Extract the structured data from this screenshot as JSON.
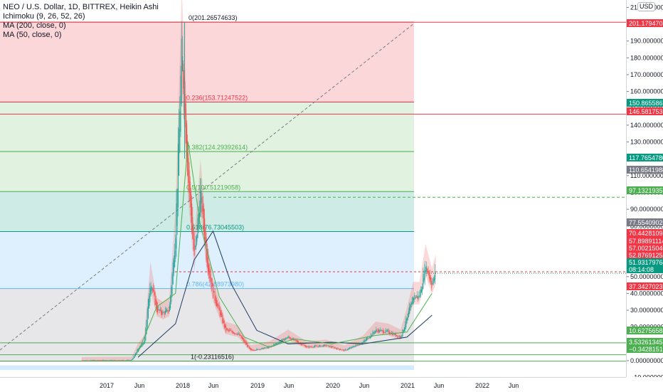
{
  "header": {
    "symbol_line": "NEO / U.S. Dollar, 1D, BITTREX, Heikin Ashi",
    "indicators": [
      "Ichimoku (9, 26, 52, 26)",
      "MA (200, close, 0)",
      "MA (50, close, 0)"
    ]
  },
  "currency_badge": "USD",
  "fib_labels": {
    "top": "0(201.26574633)",
    "l236": "0.236(153.71247522)",
    "l382": "0.382(124.29392614)",
    "l5": "0.5(100.51219058)",
    "l618": "0.618(76.73045503)",
    "l786": "0.786(42.88973980)",
    "bottom": "1(-0.23116516)"
  },
  "price_ticks": [
    "210.00000000",
    "200.00000000",
    "190.00000000",
    "180.00000000",
    "170.00000000",
    "160.00000000",
    "150.00000000",
    "140.00000000",
    "130.00000000",
    "120.00000000",
    "110.00000000",
    "100.00000000",
    "90.00000000",
    "80.00000000",
    "70.00000000",
    "60.00000000",
    "50.00000000",
    "40.00000000",
    "30.00000000",
    "20.00000000",
    "10.00000000",
    "0.00000000",
    "−10.00000000"
  ],
  "price_badges": [
    {
      "text": "201.17947087",
      "color": "#f23645"
    },
    {
      "text": "150.86558674",
      "color": "#089981"
    },
    {
      "text": "146.58175360",
      "color": "#f23645"
    },
    {
      "text": "117.76547808",
      "color": "#089981"
    },
    {
      "text": "110.65419886",
      "color": "#787b86"
    },
    {
      "text": "97.13219357",
      "color": "#4caf50"
    },
    {
      "text": "77.55409020",
      "color": "#787b86"
    },
    {
      "text": "70.44281098",
      "color": "#f23645"
    },
    {
      "text": "57.89891114",
      "color": "#f23645"
    },
    {
      "text": "57.00215040",
      "color": "#f23645"
    },
    {
      "text": "52.87691254",
      "color": "#f23645"
    },
    {
      "text": "51.93179764",
      "color": "#089981"
    },
    {
      "text": "08:14:08",
      "color": "#089981"
    },
    {
      "text": "37.34270232",
      "color": "#f23645"
    },
    {
      "text": "10.62756584",
      "color": "#4caf50"
    },
    {
      "text": "3.53261345",
      "color": "#4caf50"
    },
    {
      "text": "−0.34281513",
      "color": "#4caf50"
    }
  ],
  "time_ticks": [
    "2017",
    "Jun",
    "2018",
    "Jun",
    "2019",
    "Jun",
    "2020",
    "Jun",
    "2021",
    "Jun",
    "2022",
    "Jun"
  ],
  "colors": {
    "up": "#26a69a",
    "down": "#ef5350",
    "fib_red": "#f23645",
    "fib_green": "#4caf50",
    "fib_teal": "#089981",
    "fib_blue": "#64b5f6",
    "ma200": "#1e3a5f",
    "ma50": "#4caf50"
  },
  "chart_data": {
    "type": "candlestick",
    "title": "NEO / U.S. Dollar, 1D, BITTREX, Heikin Ashi",
    "y_range": [
      -14,
      214
    ],
    "x_range": [
      "2016-09",
      "2022-09"
    ],
    "fib_levels": [
      {
        "ratio": 0,
        "price": 201.26574633
      },
      {
        "ratio": 0.236,
        "price": 153.71247522
      },
      {
        "ratio": 0.382,
        "price": 124.29392614
      },
      {
        "ratio": 0.5,
        "price": 100.51219058
      },
      {
        "ratio": 0.618,
        "price": 76.73045503
      },
      {
        "ratio": 0.786,
        "price": 42.8897398
      },
      {
        "ratio": 1,
        "price": -0.23116516
      }
    ],
    "price_path": [
      {
        "date": "2016-09",
        "price": 0.1
      },
      {
        "date": "2017-05",
        "price": 0.3
      },
      {
        "date": "2017-06",
        "price": 7
      },
      {
        "date": "2017-07",
        "price": 11
      },
      {
        "date": "2017-08",
        "price": 48
      },
      {
        "date": "2017-09",
        "price": 30
      },
      {
        "date": "2017-10",
        "price": 28
      },
      {
        "date": "2017-11",
        "price": 30
      },
      {
        "date": "2017-12",
        "price": 75
      },
      {
        "date": "2018-01",
        "price": 185
      },
      {
        "date": "2018-02",
        "price": 110
      },
      {
        "date": "2018-03",
        "price": 60
      },
      {
        "date": "2018-04",
        "price": 100
      },
      {
        "date": "2018-05",
        "price": 60
      },
      {
        "date": "2018-06",
        "price": 40
      },
      {
        "date": "2018-08",
        "price": 18
      },
      {
        "date": "2018-10",
        "price": 16
      },
      {
        "date": "2018-12",
        "price": 6
      },
      {
        "date": "2019-03",
        "price": 8
      },
      {
        "date": "2019-06",
        "price": 14
      },
      {
        "date": "2019-09",
        "price": 8
      },
      {
        "date": "2019-12",
        "price": 9
      },
      {
        "date": "2020-03",
        "price": 6
      },
      {
        "date": "2020-06",
        "price": 11
      },
      {
        "date": "2020-08",
        "price": 18
      },
      {
        "date": "2020-10",
        "price": 17
      },
      {
        "date": "2020-12",
        "price": 14
      },
      {
        "date": "2021-01",
        "price": 25
      },
      {
        "date": "2021-02",
        "price": 38
      },
      {
        "date": "2021-03",
        "price": 38
      },
      {
        "date": "2021-04",
        "price": 57
      },
      {
        "date": "2021-05",
        "price": 45
      },
      {
        "date": "2021-05-20",
        "price": 52
      }
    ],
    "ma200": [
      {
        "date": "2017-06",
        "price": 2
      },
      {
        "date": "2017-12",
        "price": 22
      },
      {
        "date": "2018-03",
        "price": 60
      },
      {
        "date": "2018-06",
        "price": 77
      },
      {
        "date": "2018-09",
        "price": 45
      },
      {
        "date": "2019-01",
        "price": 18
      },
      {
        "date": "2019-06",
        "price": 10
      },
      {
        "date": "2020-01",
        "price": 11
      },
      {
        "date": "2020-06",
        "price": 10
      },
      {
        "date": "2021-01",
        "price": 14
      },
      {
        "date": "2021-05",
        "price": 27
      }
    ],
    "ma50": [
      {
        "date": "2017-06",
        "price": 5
      },
      {
        "date": "2017-09",
        "price": 32
      },
      {
        "date": "2017-12",
        "price": 40
      },
      {
        "date": "2018-02",
        "price": 130
      },
      {
        "date": "2018-04",
        "price": 80
      },
      {
        "date": "2018-07",
        "price": 38
      },
      {
        "date": "2018-11",
        "price": 14
      },
      {
        "date": "2019-03",
        "price": 8
      },
      {
        "date": "2019-07",
        "price": 13
      },
      {
        "date": "2020-01",
        "price": 10
      },
      {
        "date": "2020-08",
        "price": 15
      },
      {
        "date": "2021-01",
        "price": 17
      },
      {
        "date": "2021-05",
        "price": 40
      }
    ]
  }
}
